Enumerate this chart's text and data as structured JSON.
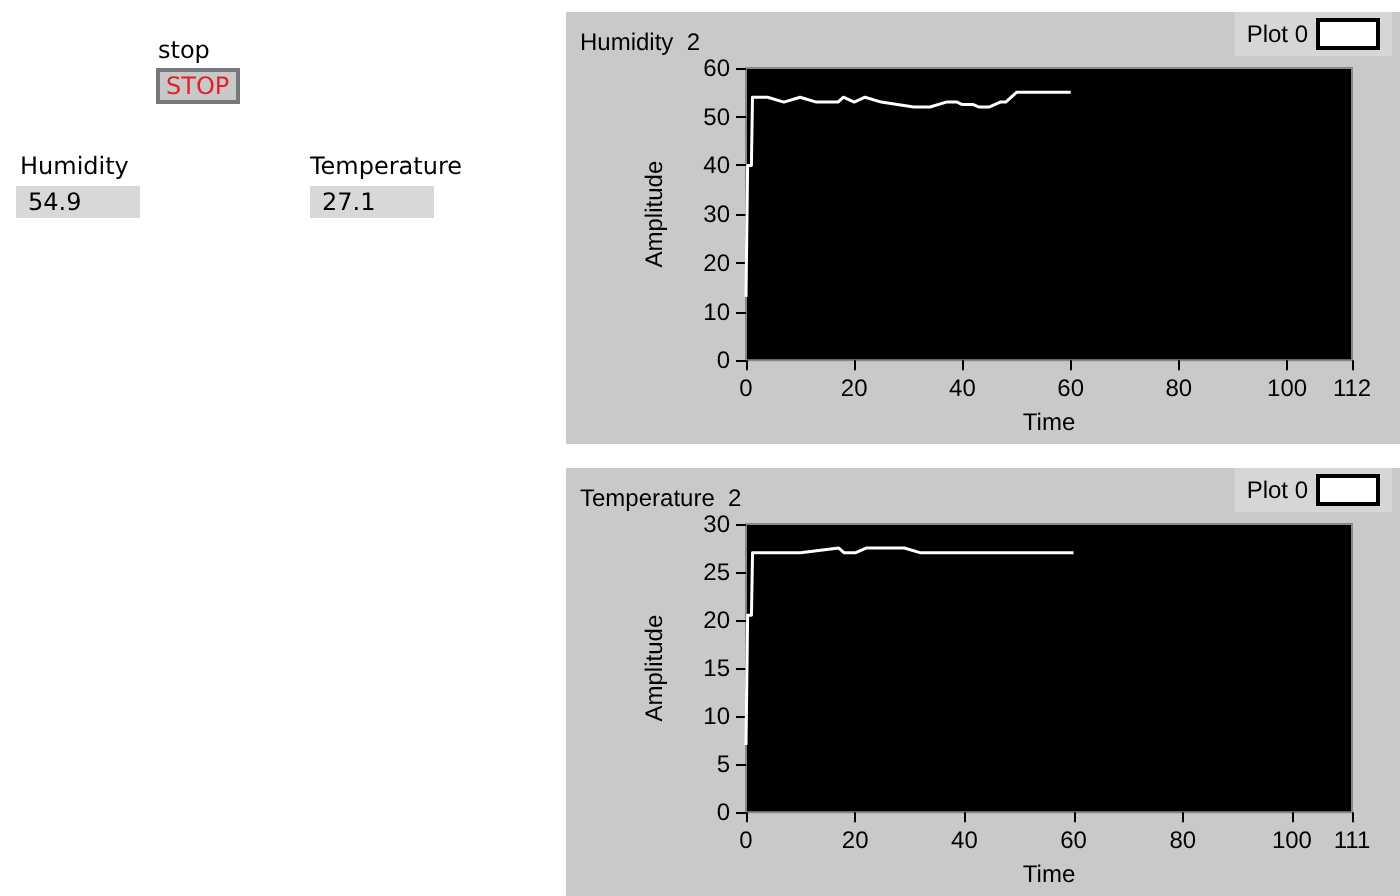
{
  "chart_data": [
    {
      "type": "other",
      "annotations": [
        "stop",
        "STOP",
        "Humidity",
        "54.9",
        "Temperature",
        "27.1"
      ]
    },
    {
      "type": "line",
      "title": "Humidity  2",
      "xlabel": "Time",
      "ylabel": "Amplitude",
      "xlim": [
        0,
        112
      ],
      "xticks": [
        0,
        20,
        40,
        60,
        80,
        100,
        112
      ],
      "ylim": [
        0,
        60
      ],
      "yticks": [
        0,
        10,
        20,
        30,
        40,
        50,
        60
      ],
      "legend": "top right",
      "marker": "none",
      "series": [
        {
          "name": "Plot 0",
          "color": "#ffffff",
          "x": [
            0,
            0.3,
            1,
            1.2,
            4,
            7,
            10,
            13,
            17,
            18,
            20,
            22,
            25,
            28,
            31,
            34,
            37,
            39,
            40,
            42,
            43,
            45,
            47,
            48,
            50,
            55,
            60
          ],
          "values": [
            13,
            40,
            40,
            54,
            54,
            53,
            54,
            53,
            53,
            54,
            53,
            54,
            53,
            52.5,
            52,
            52,
            53,
            53,
            52.5,
            52.5,
            52,
            52,
            53,
            53,
            55,
            55,
            55
          ]
        }
      ]
    },
    {
      "type": "line",
      "title": "Temperature  2",
      "xlabel": "Time",
      "ylabel": "Amplitude",
      "xlim": [
        0,
        111
      ],
      "xticks": [
        0,
        20,
        40,
        60,
        80,
        100,
        111
      ],
      "ylim": [
        0,
        30
      ],
      "yticks": [
        0,
        5,
        10,
        15,
        20,
        25,
        30
      ],
      "legend": "top right",
      "marker": "none",
      "series": [
        {
          "name": "Plot 0",
          "color": "#ffffff",
          "x": [
            0,
            0.3,
            1,
            1.2,
            10,
            17,
            18,
            20,
            22,
            29,
            32,
            36,
            38,
            48,
            60
          ],
          "values": [
            7,
            20.5,
            20.5,
            27,
            27,
            27.5,
            27,
            27,
            27.5,
            27.5,
            27,
            27,
            27,
            27,
            27
          ]
        }
      ]
    }
  ]
}
